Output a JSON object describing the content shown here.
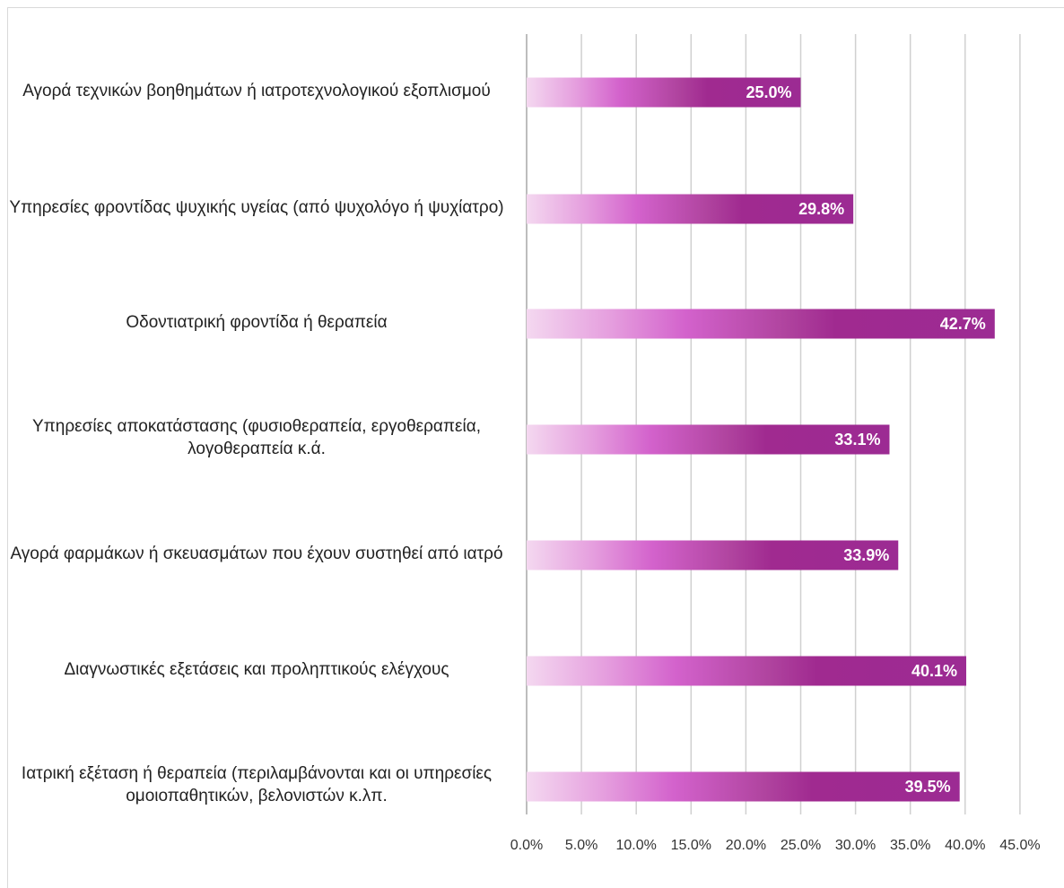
{
  "chart_data": {
    "type": "bar",
    "orientation": "horizontal",
    "categories": [
      "Αγορά τεχνικών βοηθημάτων ή ιατροτεχνολογικού εξοπλισμού",
      "Υπηρεσίες φροντίδας ψυχικής υγείας (από ψυχολόγο ή ψυχίατρο)",
      "Οδοντιατρική φροντίδα ή θεραπεία",
      "Υπηρεσίες αποκατάστασης (φυσιοθεραπεία, εργοθεραπεία, λογοθεραπεία κ.ά.",
      "Αγορά φαρμάκων ή σκευασμάτων που έχουν συστηθεί από ιατρό",
      "Διαγνωστικές εξετάσεις  και προληπτικούς ελέγχους",
      "Ιατρική εξέταση ή θεραπεία (περιλαμβάνονται και οι υπηρεσίες ομοιοπαθητικών, βελονιστών κ.λπ."
    ],
    "values": [
      25.0,
      29.8,
      42.7,
      33.1,
      33.9,
      40.1,
      39.5
    ],
    "value_labels": [
      "25.0%",
      "29.8%",
      "42.7%",
      "33.1%",
      "33.9%",
      "40.1%",
      "39.5%"
    ],
    "x_ticks": [
      "0.0%",
      "5.0%",
      "10.0%",
      "15.0%",
      "20.0%",
      "25.0%",
      "30.0%",
      "35.0%",
      "40.0%",
      "45.0%"
    ],
    "xlim": [
      0,
      45
    ],
    "grid": true,
    "legend": "none",
    "title": "",
    "xlabel": "",
    "ylabel": "",
    "colors": {
      "bar_start": "#f4d8f0",
      "bar_mid": "#d362cc",
      "bar_dark": "#a02a90",
      "bar_end": "#9c2b93",
      "grid": "#d0d0d0",
      "axis": "#bdbdbd"
    }
  }
}
